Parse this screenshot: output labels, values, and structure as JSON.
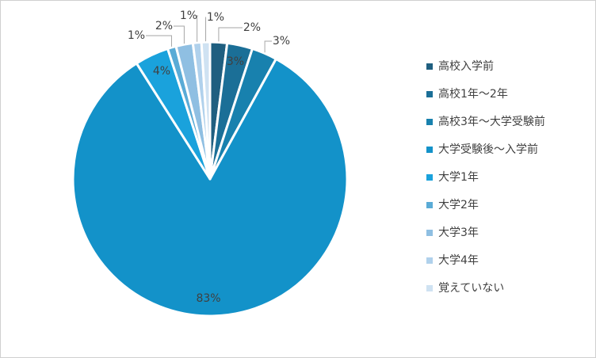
{
  "chart_data": {
    "type": "pie",
    "categories": [
      "高校入学前",
      "高校1年〜2年",
      "高校3年〜大学受験前",
      "大学受験後〜入学前",
      "大学1年",
      "大学2年",
      "大学3年",
      "大学4年",
      "覚えていない"
    ],
    "values": [
      2,
      3,
      3,
      83,
      4,
      1,
      2,
      1,
      1
    ],
    "value_labels": [
      "2%",
      "3%",
      "3%",
      "83%",
      "4%",
      "1%",
      "2%",
      "1%",
      "1%"
    ],
    "colors": [
      "#1f5f80",
      "#1b6f97",
      "#1881ae",
      "#1392c9",
      "#1aa2dc",
      "#5aabd6",
      "#8fbfe2",
      "#b0d1ec",
      "#cfe2f2"
    ],
    "legend": "right"
  }
}
